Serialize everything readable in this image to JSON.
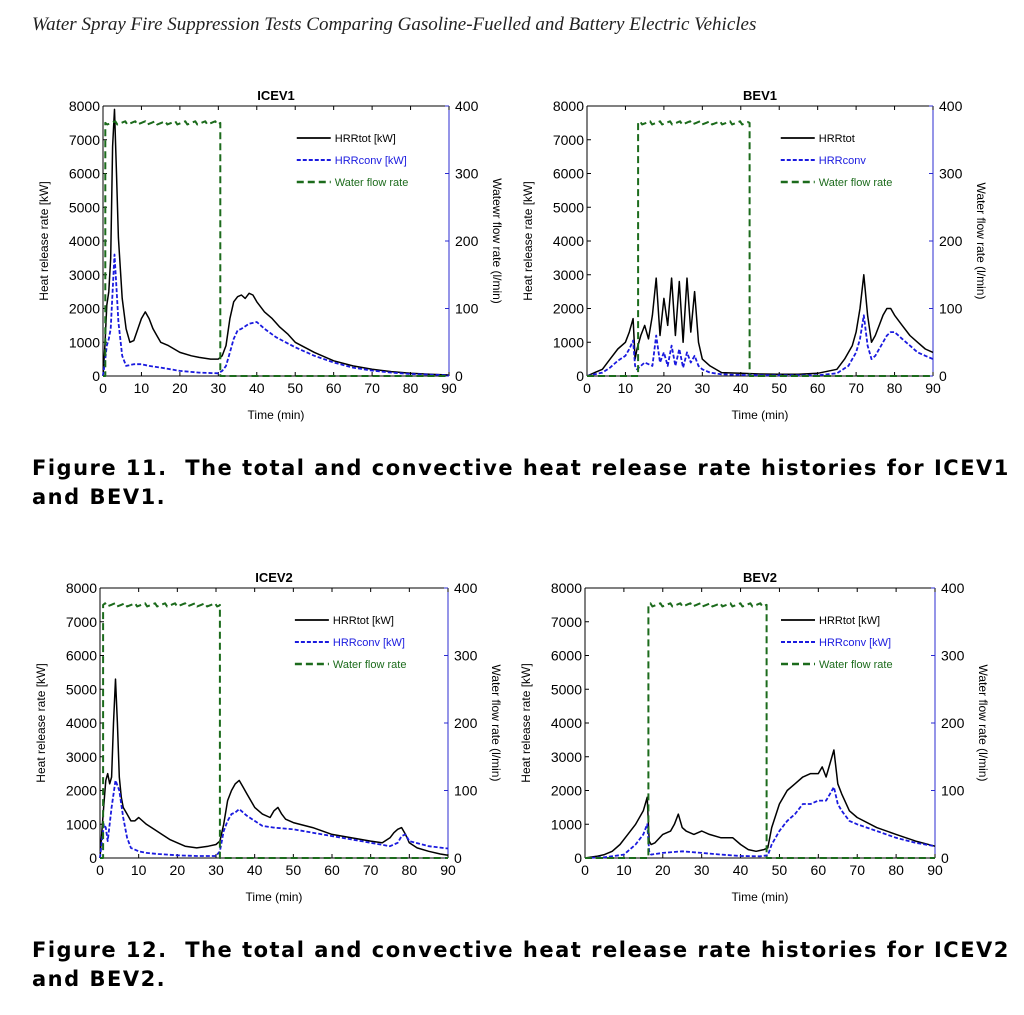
{
  "page": {
    "header": "Water Spray Fire Suppression Tests Comparing Gasoline-Fuelled and Battery Electric Vehicles",
    "figure11": {
      "label": "Figure 11.",
      "text": "The total and convective heat release rate histories for ICEV1 and BEV1."
    },
    "figure12": {
      "label": "Figure 12.",
      "text": "The total and convective heat release rate histories for ICEV2 and BEV2."
    }
  },
  "colors": {
    "hrr_tot": "#000000",
    "hrr_conv": "#1a1adf",
    "water": "#1c6b1c",
    "axis_right": "#2b2bd0"
  },
  "chart_data": [
    {
      "type": "line",
      "title": "ICEV1",
      "xlabel": "Time (min)",
      "ylabel": "Heat release rate [kW]",
      "y2label": "Watewr flow rate (l/min)",
      "xlim": [
        0,
        90
      ],
      "ylim": [
        0,
        8000
      ],
      "y2lim": [
        0,
        400
      ],
      "xticks": [
        0,
        10,
        20,
        30,
        40,
        50,
        60,
        70,
        80,
        90
      ],
      "yticks": [
        0,
        1000,
        2000,
        3000,
        4000,
        5000,
        6000,
        7000,
        8000
      ],
      "y2ticks": [
        0,
        100,
        200,
        300,
        400
      ],
      "legend_position": "top-right",
      "series": [
        {
          "name": "HRRtot [kW]",
          "axis": "left",
          "style": "solid",
          "x": [
            0,
            0.5,
            1,
            1.5,
            2,
            2.5,
            3,
            3.5,
            4,
            5,
            6,
            7,
            8,
            10,
            11,
            12,
            13,
            14,
            15,
            17,
            20,
            23,
            25,
            28,
            30,
            31,
            32,
            33,
            34,
            35,
            36,
            37,
            38,
            39,
            40,
            42,
            44,
            46,
            48,
            50,
            55,
            60,
            65,
            70,
            75,
            80,
            85,
            90
          ],
          "y": [
            0,
            900,
            2100,
            2500,
            3500,
            6800,
            7900,
            6000,
            4100,
            2300,
            1400,
            1000,
            1050,
            1700,
            1900,
            1700,
            1400,
            1200,
            1000,
            900,
            700,
            600,
            550,
            500,
            500,
            600,
            900,
            1700,
            2200,
            2350,
            2400,
            2300,
            2450,
            2400,
            2200,
            1900,
            1700,
            1450,
            1250,
            1000,
            700,
            450,
            300,
            200,
            130,
            80,
            50,
            30
          ]
        },
        {
          "name": "HRRconv [kW]",
          "axis": "left",
          "style": "dashed",
          "x": [
            0,
            0.5,
            1,
            1.5,
            2,
            2.5,
            3,
            3.5,
            4,
            5,
            6,
            8,
            10,
            12,
            15,
            20,
            25,
            30,
            31,
            32,
            33,
            34,
            35,
            36,
            38,
            40,
            42,
            45,
            50,
            55,
            60,
            65,
            70,
            75,
            80,
            85,
            90
          ],
          "y": [
            0,
            400,
            900,
            1100,
            1400,
            2500,
            3600,
            2600,
            1600,
            600,
            300,
            350,
            350,
            300,
            250,
            150,
            100,
            80,
            150,
            300,
            700,
            1100,
            1350,
            1400,
            1550,
            1600,
            1400,
            1150,
            850,
            600,
            400,
            250,
            160,
            100,
            60,
            40,
            20
          ]
        },
        {
          "name": "Water flow rate",
          "axis": "right",
          "style": "dashed",
          "x": [
            0,
            0.6,
            0.6,
            30.5,
            30.5,
            90
          ],
          "y": [
            0,
            0,
            375,
            375,
            0,
            0
          ]
        }
      ]
    },
    {
      "type": "line",
      "title": "BEV1",
      "xlabel": "Time (min)",
      "ylabel": "Heat release rate [kW]",
      "y2label": "Water flow rate (l/min)",
      "xlim": [
        0,
        90
      ],
      "ylim": [
        0,
        8000
      ],
      "y2lim": [
        0,
        400
      ],
      "xticks": [
        0,
        10,
        20,
        30,
        40,
        50,
        60,
        70,
        80,
        90
      ],
      "yticks": [
        0,
        1000,
        2000,
        3000,
        4000,
        5000,
        6000,
        7000,
        8000
      ],
      "y2ticks": [
        0,
        100,
        200,
        300,
        400
      ],
      "legend_position": "top-right",
      "series": [
        {
          "name": "HRRtot",
          "axis": "left",
          "style": "solid",
          "x": [
            0,
            2,
            4,
            6,
            8,
            10,
            11,
            12,
            12.5,
            13,
            14,
            15,
            16,
            17,
            18,
            19,
            20,
            21,
            22,
            23,
            24,
            25,
            26,
            27,
            28,
            29,
            30,
            32,
            35,
            40,
            45,
            50,
            55,
            60,
            65,
            67,
            69,
            70,
            71,
            72,
            73,
            74,
            75,
            76,
            77,
            78,
            79,
            80,
            82,
            84,
            86,
            88,
            90
          ],
          "y": [
            0,
            100,
            200,
            500,
            800,
            1000,
            1300,
            1700,
            500,
            800,
            1200,
            1500,
            1100,
            1800,
            2900,
            1200,
            2300,
            1500,
            2900,
            1200,
            2800,
            1000,
            2900,
            1300,
            2500,
            1000,
            500,
            300,
            100,
            80,
            60,
            50,
            50,
            80,
            200,
            500,
            900,
            1300,
            2000,
            3000,
            1800,
            1000,
            1200,
            1500,
            1800,
            2000,
            2000,
            1800,
            1500,
            1200,
            1000,
            800,
            700
          ]
        },
        {
          "name": "HRRconv",
          "axis": "left",
          "style": "dashed",
          "x": [
            0,
            2,
            4,
            6,
            8,
            10,
            11,
            12,
            12.5,
            13,
            15,
            17,
            18,
            19,
            20,
            21,
            22,
            23,
            24,
            25,
            26,
            27,
            28,
            29,
            30,
            32,
            35,
            40,
            50,
            60,
            65,
            68,
            70,
            71,
            72,
            73,
            74,
            75,
            77,
            78,
            79,
            80,
            82,
            84,
            86,
            88,
            90
          ],
          "y": [
            0,
            50,
            100,
            250,
            450,
            600,
            800,
            1050,
            300,
            200,
            400,
            300,
            1200,
            400,
            700,
            300,
            900,
            300,
            800,
            250,
            700,
            400,
            600,
            300,
            200,
            100,
            50,
            30,
            20,
            20,
            80,
            300,
            700,
            1100,
            1800,
            900,
            500,
            600,
            1000,
            1200,
            1300,
            1300,
            1100,
            900,
            700,
            600,
            500
          ]
        },
        {
          "name": "Water flow rate",
          "axis": "right",
          "style": "dashed",
          "x": [
            0,
            13.3,
            13.3,
            42.3,
            42.3,
            90
          ],
          "y": [
            0,
            0,
            375,
            375,
            0,
            0
          ]
        }
      ]
    },
    {
      "type": "line",
      "title": "ICEV2",
      "xlabel": "Time (min)",
      "ylabel": "Heat release rate [kW]",
      "y2label": "Water flow rate (l/min)",
      "xlim": [
        0,
        90
      ],
      "ylim": [
        0,
        8000
      ],
      "y2lim": [
        0,
        400
      ],
      "xticks": [
        0,
        10,
        20,
        30,
        40,
        50,
        60,
        70,
        80,
        90
      ],
      "yticks": [
        0,
        1000,
        2000,
        3000,
        4000,
        5000,
        6000,
        7000,
        8000
      ],
      "y2ticks": [
        0,
        100,
        200,
        300,
        400
      ],
      "legend_position": "top-right",
      "series": [
        {
          "name": "HRRtot [kW]",
          "axis": "left",
          "style": "solid",
          "x": [
            0,
            0.5,
            1,
            1.5,
            2,
            2.5,
            3,
            3.5,
            4,
            4.5,
            5,
            5.5,
            6,
            7,
            8,
            9,
            10,
            12,
            14,
            16,
            18,
            20,
            22,
            25,
            28,
            30,
            31,
            32,
            33,
            34,
            35,
            36,
            37,
            38,
            40,
            42,
            44,
            45,
            46,
            47,
            48,
            50,
            55,
            60,
            65,
            70,
            73,
            75,
            76,
            77,
            78,
            79,
            80,
            82,
            85,
            88,
            90
          ],
          "y": [
            0,
            800,
            1600,
            2300,
            2500,
            2200,
            2400,
            4000,
            5300,
            4000,
            2400,
            1800,
            1500,
            1300,
            1100,
            1100,
            1200,
            1000,
            850,
            700,
            550,
            450,
            350,
            300,
            350,
            400,
            500,
            1000,
            1700,
            2000,
            2200,
            2300,
            2100,
            1900,
            1500,
            1300,
            1200,
            1400,
            1500,
            1300,
            1150,
            1050,
            900,
            700,
            600,
            500,
            450,
            600,
            750,
            850,
            900,
            700,
            450,
            300,
            200,
            120,
            80
          ]
        },
        {
          "name": "HRRconv [kW]",
          "axis": "left",
          "style": "dashed",
          "x": [
            0,
            0.5,
            1,
            1.5,
            2,
            3,
            4,
            5,
            6,
            7,
            8,
            10,
            12,
            15,
            20,
            25,
            30,
            31,
            32,
            33,
            34,
            35,
            36,
            38,
            40,
            42,
            45,
            50,
            55,
            60,
            65,
            70,
            75,
            77,
            78,
            79,
            80,
            85,
            90
          ],
          "y": [
            0,
            500,
            1000,
            900,
            500,
            1500,
            2300,
            2000,
            1200,
            600,
            300,
            200,
            150,
            120,
            80,
            60,
            60,
            200,
            800,
            1100,
            1300,
            1350,
            1450,
            1250,
            1100,
            950,
            900,
            850,
            750,
            650,
            550,
            450,
            350,
            450,
            650,
            700,
            500,
            350,
            280
          ]
        },
        {
          "name": "Water flow rate",
          "axis": "right",
          "style": "dashed",
          "x": [
            0,
            0.8,
            0.8,
            31,
            31,
            90
          ],
          "y": [
            0,
            0,
            375,
            375,
            0,
            0
          ]
        }
      ]
    },
    {
      "type": "line",
      "title": "BEV2",
      "xlabel": "Time (min)",
      "ylabel": "Heat release rate [kW]",
      "y2label": "Water flow rate (l/min)",
      "xlim": [
        0,
        90
      ],
      "ylim": [
        0,
        8000
      ],
      "y2lim": [
        0,
        400
      ],
      "xticks": [
        0,
        10,
        20,
        30,
        40,
        50,
        60,
        70,
        80,
        90
      ],
      "yticks": [
        0,
        1000,
        2000,
        3000,
        4000,
        5000,
        6000,
        7000,
        8000
      ],
      "y2ticks": [
        0,
        100,
        200,
        300,
        400
      ],
      "legend_position": "top-right",
      "series": [
        {
          "name": "HRRtot [kW]",
          "axis": "left",
          "style": "solid",
          "x": [
            0,
            3,
            5,
            7,
            9,
            11,
            13,
            15,
            16,
            16.5,
            17,
            18,
            20,
            22,
            23,
            24,
            25,
            26,
            28,
            30,
            32,
            35,
            38,
            40,
            42,
            44,
            46,
            47,
            48,
            50,
            52,
            54,
            56,
            58,
            60,
            61,
            62,
            63,
            64,
            65,
            66,
            68,
            70,
            75,
            80,
            85,
            90
          ],
          "y": [
            0,
            50,
            100,
            200,
            400,
            700,
            1000,
            1400,
            1800,
            500,
            400,
            450,
            700,
            800,
            1000,
            1300,
            900,
            800,
            700,
            800,
            700,
            600,
            600,
            400,
            250,
            200,
            250,
            300,
            900,
            1600,
            2000,
            2200,
            2400,
            2500,
            2500,
            2700,
            2400,
            2800,
            3200,
            2200,
            1900,
            1400,
            1200,
            900,
            700,
            500,
            350
          ]
        },
        {
          "name": "HRRconv [kW]",
          "axis": "left",
          "style": "dashed",
          "x": [
            0,
            5,
            10,
            13,
            15,
            16,
            16.5,
            17,
            20,
            25,
            30,
            35,
            40,
            45,
            47,
            48,
            50,
            52,
            54,
            56,
            58,
            60,
            62,
            63,
            64,
            65,
            66,
            68,
            70,
            75,
            80,
            85,
            90
          ],
          "y": [
            0,
            20,
            100,
            400,
            700,
            1000,
            200,
            100,
            150,
            200,
            150,
            100,
            60,
            50,
            80,
            400,
            800,
            1100,
            1300,
            1600,
            1600,
            1700,
            1700,
            1900,
            2100,
            1600,
            1400,
            1100,
            1000,
            800,
            600,
            450,
            350
          ]
        },
        {
          "name": "Water flow rate",
          "axis": "right",
          "style": "dashed",
          "x": [
            0,
            16.3,
            16.3,
            46.7,
            46.7,
            90
          ],
          "y": [
            0,
            0,
            375,
            375,
            0,
            0
          ]
        }
      ]
    }
  ]
}
